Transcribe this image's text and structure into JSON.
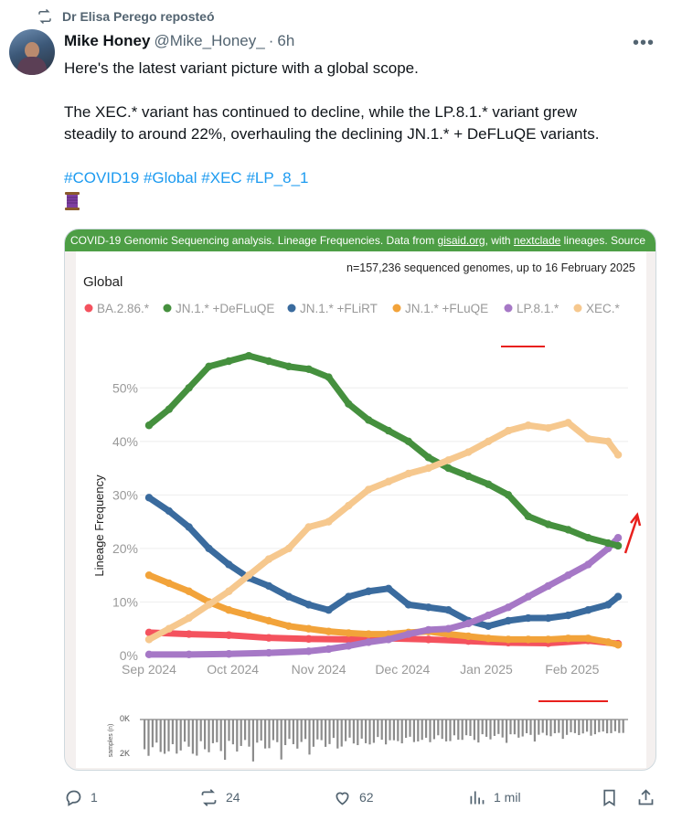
{
  "repost": {
    "label": "Dr Elisa Perego reposteó"
  },
  "tweet": {
    "author_name": "Mike Honey",
    "handle": "@Mike_Honey_",
    "separator": "·",
    "time": "6h",
    "text_line1": "Here's the latest variant picture with a global scope.",
    "text_line2": "The XEC.* variant has continued to decline, while the LP.8.1.* variant grew",
    "text_line3": "steadily to around 22%, overhauling the declining JN.1.* + DeFLuQE variants.",
    "hashtags": [
      "#COVID19",
      "#Global",
      "#XEC",
      "#LP_8_1"
    ]
  },
  "media": {
    "banner_part1": "COVID-19 Genomic Sequencing analysis. Lineage Frequencies. Data from ",
    "banner_link1": "gisaid.org",
    "banner_part2": ", with ",
    "banner_link2": "nextclade",
    "banner_part3": " lineages. Source"
  },
  "chart_data": {
    "type": "line",
    "title": "Global",
    "subtitle": "n=157,236 sequenced genomes, up to 16 February 2025",
    "ylabel": "Lineage Frequency",
    "ylim": [
      0,
      55
    ],
    "yticks": [
      "0%",
      "10%",
      "20%",
      "30%",
      "40%",
      "50%"
    ],
    "ytick_values": [
      0,
      10,
      20,
      30,
      40,
      50
    ],
    "xlim": [
      0,
      24
    ],
    "xticks": [
      "Sep 2024",
      "Oct 2024",
      "Nov 2024",
      "Dec 2024",
      "Jan 2025",
      "Feb 2025"
    ],
    "xtick_values": [
      0,
      4.2,
      8.5,
      12.7,
      16.9,
      21.2
    ],
    "x_unit": "weeks from start of Sep 2024",
    "legend_position": "top",
    "series": [
      {
        "name": "BA.2.86.*",
        "color": "#f4525e",
        "points": [
          [
            0,
            4.3
          ],
          [
            2,
            4.0
          ],
          [
            4,
            3.8
          ],
          [
            6,
            3.3
          ],
          [
            8,
            3.1
          ],
          [
            10,
            3.0
          ],
          [
            12,
            3.2
          ],
          [
            14,
            3.0
          ],
          [
            16,
            2.7
          ],
          [
            18,
            2.4
          ],
          [
            20,
            2.3
          ],
          [
            22,
            2.8
          ],
          [
            23.5,
            2.2
          ]
        ]
      },
      {
        "name": "JN.1.* +DeFLuQE",
        "color": "#45903e",
        "points": [
          [
            0,
            43
          ],
          [
            1,
            46
          ],
          [
            2,
            50
          ],
          [
            3,
            54
          ],
          [
            4,
            55
          ],
          [
            5,
            56
          ],
          [
            6,
            55
          ],
          [
            7,
            54
          ],
          [
            8,
            53.5
          ],
          [
            9,
            52
          ],
          [
            10,
            47
          ],
          [
            11,
            44
          ],
          [
            12,
            42
          ],
          [
            13,
            40
          ],
          [
            14,
            37
          ],
          [
            15,
            35
          ],
          [
            16,
            33.5
          ],
          [
            17,
            32
          ],
          [
            18,
            30
          ],
          [
            19,
            26
          ],
          [
            20,
            24.5
          ],
          [
            21,
            23.5
          ],
          [
            22,
            22
          ],
          [
            23,
            21
          ],
          [
            23.5,
            20.5
          ]
        ]
      },
      {
        "name": "JN.1.* +FLiRT",
        "color": "#3a6b9e",
        "points": [
          [
            0,
            29.5
          ],
          [
            1,
            27
          ],
          [
            2,
            24
          ],
          [
            3,
            20
          ],
          [
            4,
            17
          ],
          [
            5,
            14.5
          ],
          [
            6,
            13
          ],
          [
            7,
            11
          ],
          [
            8,
            9.5
          ],
          [
            9,
            8.5
          ],
          [
            10,
            11
          ],
          [
            11,
            12
          ],
          [
            12,
            12.5
          ],
          [
            13,
            9.5
          ],
          [
            14,
            9
          ],
          [
            15,
            8.5
          ],
          [
            16,
            6.5
          ],
          [
            17,
            5.5
          ],
          [
            18,
            6.5
          ],
          [
            19,
            7
          ],
          [
            20,
            7
          ],
          [
            21,
            7.5
          ],
          [
            22,
            8.5
          ],
          [
            23,
            9.5
          ],
          [
            23.5,
            11
          ]
        ]
      },
      {
        "name": "JN.1.* +FLuQE",
        "color": "#f2a33a",
        "points": [
          [
            0,
            15
          ],
          [
            1,
            13.5
          ],
          [
            2,
            12
          ],
          [
            3,
            10
          ],
          [
            4,
            8.5
          ],
          [
            5,
            7.5
          ],
          [
            6,
            6.5
          ],
          [
            7,
            5.5
          ],
          [
            8,
            5
          ],
          [
            9,
            4.5
          ],
          [
            10,
            4.2
          ],
          [
            11,
            4
          ],
          [
            12,
            4
          ],
          [
            13,
            4.3
          ],
          [
            14,
            4.5
          ],
          [
            15,
            4
          ],
          [
            16,
            3.6
          ],
          [
            17,
            3.2
          ],
          [
            18,
            3.0
          ],
          [
            19,
            3.0
          ],
          [
            20,
            3.0
          ],
          [
            21,
            3.2
          ],
          [
            22,
            3.2
          ],
          [
            23,
            2.5
          ],
          [
            23.5,
            2.0
          ]
        ]
      },
      {
        "name": "LP.8.1.*",
        "color": "#a678c6",
        "points": [
          [
            0,
            0.2
          ],
          [
            2,
            0.2
          ],
          [
            4,
            0.3
          ],
          [
            6,
            0.5
          ],
          [
            8,
            0.8
          ],
          [
            9,
            1.2
          ],
          [
            10,
            1.8
          ],
          [
            11,
            2.5
          ],
          [
            12,
            3
          ],
          [
            13,
            4
          ],
          [
            14,
            4.8
          ],
          [
            15,
            5
          ],
          [
            16,
            6
          ],
          [
            17,
            7.5
          ],
          [
            18,
            9
          ],
          [
            19,
            11
          ],
          [
            20,
            13
          ],
          [
            21,
            15
          ],
          [
            22,
            17
          ],
          [
            23,
            20
          ],
          [
            23.5,
            22
          ]
        ]
      },
      {
        "name": "XEC.*",
        "color": "#f6c88e",
        "points": [
          [
            0,
            3
          ],
          [
            1,
            5
          ],
          [
            2,
            7
          ],
          [
            3,
            9.5
          ],
          [
            4,
            12
          ],
          [
            5,
            15
          ],
          [
            6,
            18
          ],
          [
            7,
            20
          ],
          [
            8,
            24
          ],
          [
            9,
            25
          ],
          [
            10,
            28
          ],
          [
            11,
            31
          ],
          [
            12,
            32.5
          ],
          [
            13,
            34
          ],
          [
            14,
            35
          ],
          [
            15,
            36.5
          ],
          [
            16,
            38
          ],
          [
            17,
            40
          ],
          [
            18,
            42
          ],
          [
            19,
            43
          ],
          [
            20,
            42.5
          ],
          [
            21,
            43.5
          ],
          [
            22,
            40.5
          ],
          [
            23,
            40
          ],
          [
            23.5,
            37.5
          ]
        ]
      }
    ]
  },
  "samples_chart": {
    "ylabel": "samples (n)",
    "ytick_labels": [
      "0K",
      "2K"
    ]
  },
  "actions": {
    "replies": "1",
    "reposts": "24",
    "likes": "62",
    "views": "1 mil"
  }
}
